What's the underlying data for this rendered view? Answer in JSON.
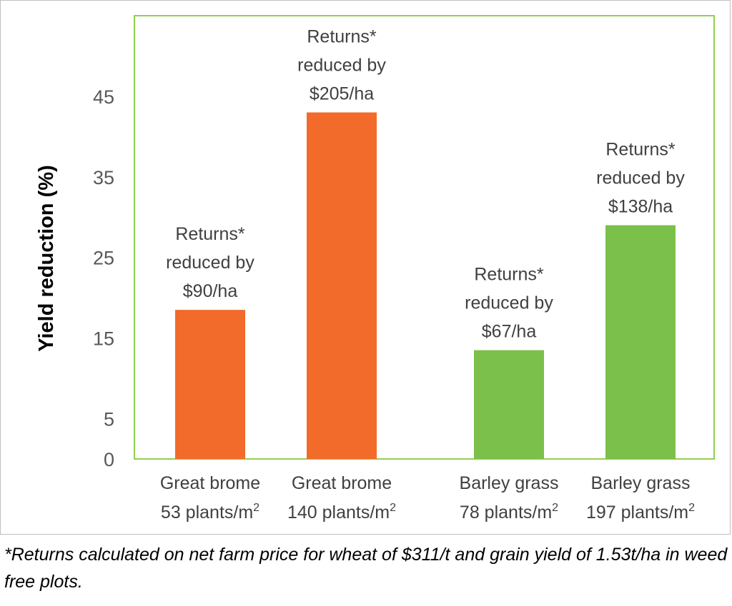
{
  "chart_data": {
    "type": "bar",
    "ylabel": "Yield reduction (%)",
    "xlabel": "",
    "y_ticks": [
      0,
      5,
      15,
      25,
      35,
      45
    ],
    "ylim": [
      0,
      55
    ],
    "grid": false,
    "plot_border_color": "#92d050",
    "categories": [
      {
        "line1": "Great brome",
        "line2": "53 plants/m",
        "sup": "2"
      },
      {
        "line1": "Great brome",
        "line2": "140 plants/m",
        "sup": "2"
      },
      {
        "line1": "Barley grass",
        "line2": "78 plants/m",
        "sup": "2"
      },
      {
        "line1": "Barley grass",
        "line2": "197 plants/m",
        "sup": "2"
      }
    ],
    "values": [
      18.5,
      43,
      13.5,
      29
    ],
    "bar_colors": [
      "#f26b2a",
      "#f26b2a",
      "#7bc04a",
      "#7bc04a"
    ],
    "annotations": [
      [
        "Returns*",
        "reduced by",
        "$90/ha"
      ],
      [
        "Returns*",
        "reduced by",
        "$205/ha"
      ],
      [
        "Returns*",
        "reduced by",
        "$67/ha"
      ],
      [
        "Returns*",
        "reduced by",
        "$138/ha"
      ]
    ]
  },
  "footnote": "*Returns calculated on net farm price for wheat of $311/t and grain yield of 1.53t/ha in weed free plots."
}
